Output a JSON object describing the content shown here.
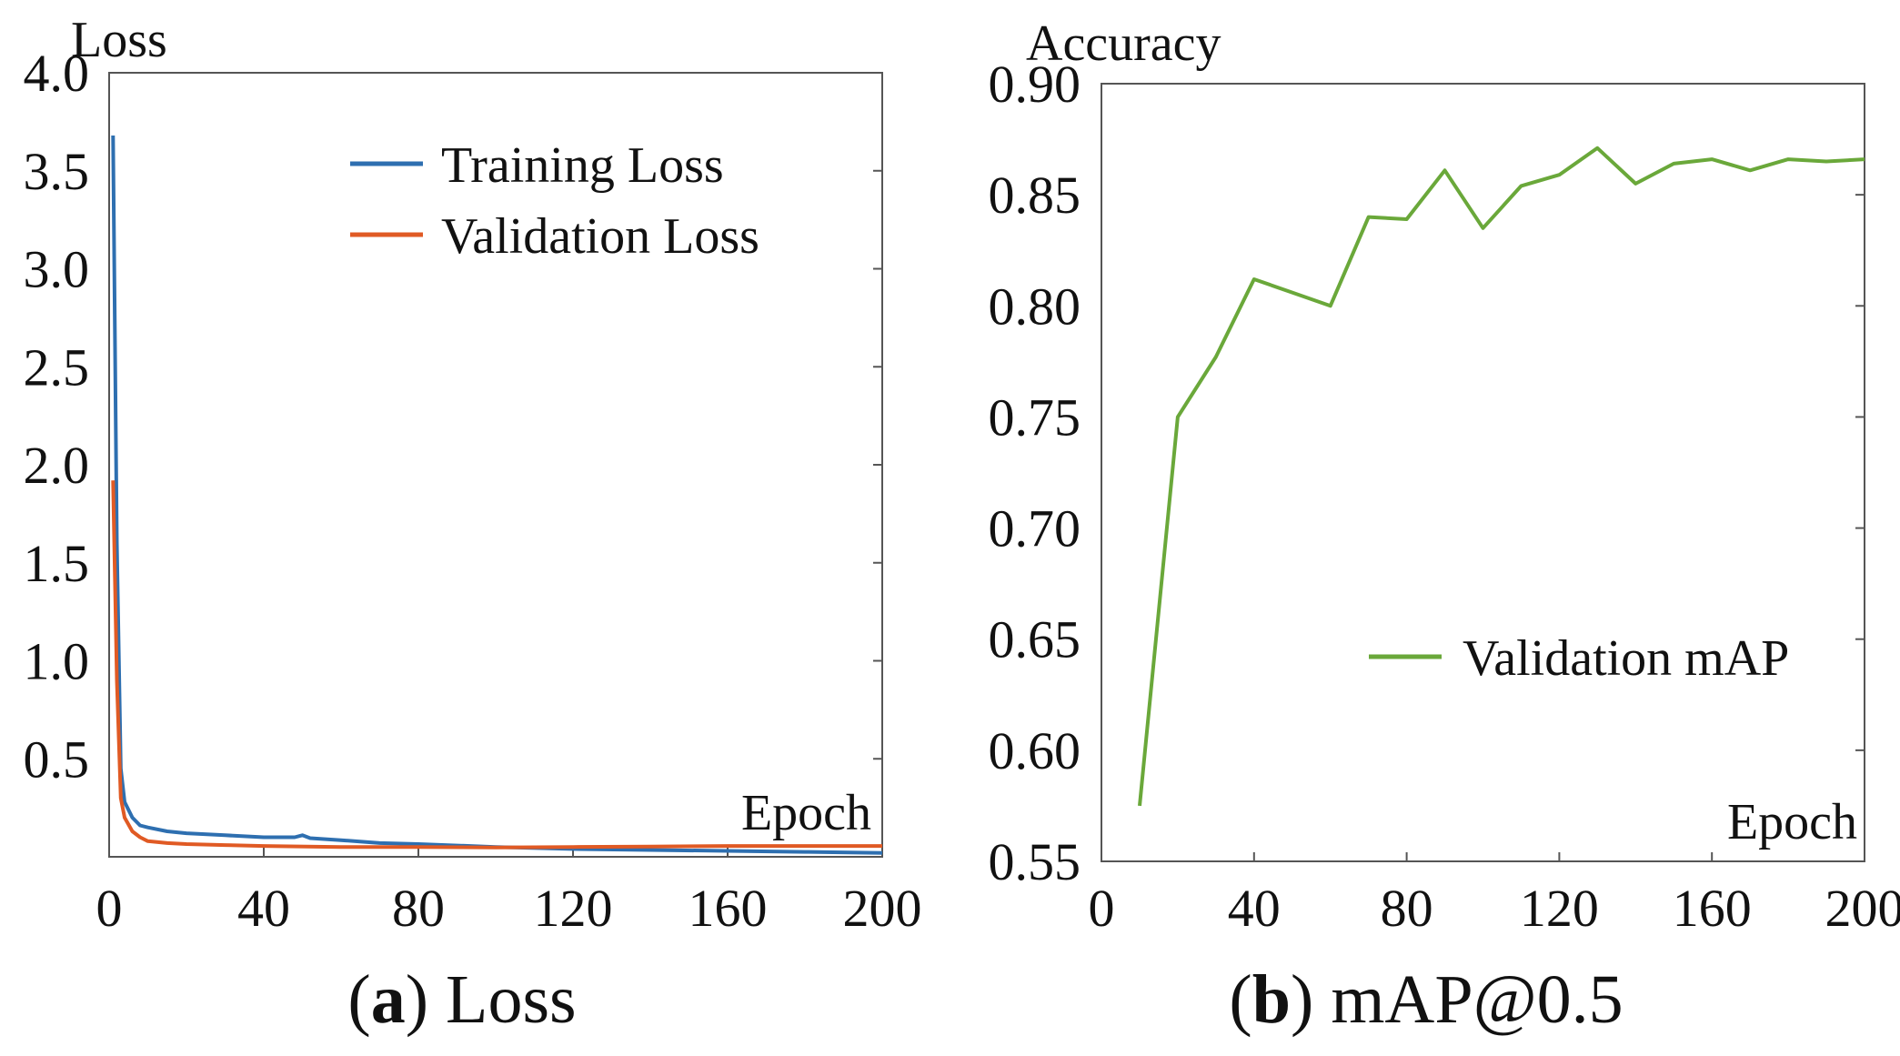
{
  "chart_data": [
    {
      "type": "line",
      "title": "Loss",
      "ylabel": "Loss",
      "xlabel": "Epoch",
      "xlim": [
        0,
        200
      ],
      "ylim": [
        0,
        4.0
      ],
      "x_ticks": [
        0,
        40,
        80,
        120,
        160,
        200
      ],
      "y_ticks": [
        0.5,
        1.0,
        1.5,
        2.0,
        2.5,
        3.0,
        3.5,
        4.0
      ],
      "x_tick_labels": [
        "0",
        "40",
        "80",
        "120",
        "160",
        "200"
      ],
      "y_tick_labels": [
        "0.5",
        "1.0",
        "1.5",
        "2.0",
        "2.5",
        "3.0",
        "3.5",
        "4.0"
      ],
      "grid": false,
      "legend_position": "top-right",
      "caption": {
        "letter": "a",
        "text": "Loss"
      },
      "series": [
        {
          "name": "Training Loss",
          "color": "#2e6fb0",
          "x": [
            1,
            2,
            3,
            4,
            6,
            8,
            10,
            15,
            20,
            30,
            40,
            48,
            50,
            52,
            60,
            70,
            80,
            100,
            120,
            140,
            160,
            180,
            200
          ],
          "y": [
            3.68,
            1.6,
            0.45,
            0.28,
            0.2,
            0.16,
            0.15,
            0.13,
            0.12,
            0.11,
            0.1,
            0.1,
            0.11,
            0.095,
            0.085,
            0.07,
            0.065,
            0.05,
            0.04,
            0.035,
            0.03,
            0.025,
            0.02
          ]
        },
        {
          "name": "Validation Loss",
          "color": "#e05a24",
          "x": [
            1,
            2,
            3,
            4,
            6,
            8,
            10,
            15,
            20,
            30,
            40,
            60,
            80,
            100,
            120,
            140,
            160,
            180,
            200
          ],
          "y": [
            1.92,
            0.9,
            0.3,
            0.2,
            0.13,
            0.1,
            0.08,
            0.07,
            0.065,
            0.06,
            0.055,
            0.05,
            0.05,
            0.048,
            0.05,
            0.052,
            0.055,
            0.055,
            0.055
          ]
        }
      ]
    },
    {
      "type": "line",
      "title": "mAP@0.5",
      "ylabel": "Accuracy",
      "xlabel": "Epoch",
      "xlim": [
        0,
        200
      ],
      "ylim": [
        0.55,
        0.9
      ],
      "x_ticks": [
        0,
        40,
        80,
        120,
        160,
        200
      ],
      "y_ticks": [
        0.55,
        0.6,
        0.65,
        0.7,
        0.75,
        0.8,
        0.85,
        0.9
      ],
      "x_tick_labels": [
        "0",
        "40",
        "80",
        "120",
        "160",
        "200"
      ],
      "y_tick_labels": [
        "0.55",
        "0.60",
        "0.65",
        "0.70",
        "0.75",
        "0.80",
        "0.85",
        "0.90"
      ],
      "grid": false,
      "legend_position": "center-right",
      "caption": {
        "letter": "b",
        "text": "mAP@0.5"
      },
      "series": [
        {
          "name": "Validation mAP",
          "color": "#6aa83a",
          "x": [
            10,
            20,
            30,
            40,
            50,
            60,
            70,
            80,
            90,
            100,
            110,
            120,
            130,
            140,
            150,
            160,
            170,
            180,
            190,
            200
          ],
          "y": [
            0.575,
            0.75,
            0.777,
            0.812,
            0.806,
            0.8,
            0.84,
            0.839,
            0.861,
            0.835,
            0.854,
            0.859,
            0.871,
            0.855,
            0.864,
            0.866,
            0.861,
            0.866,
            0.865,
            0.866
          ]
        }
      ]
    }
  ]
}
